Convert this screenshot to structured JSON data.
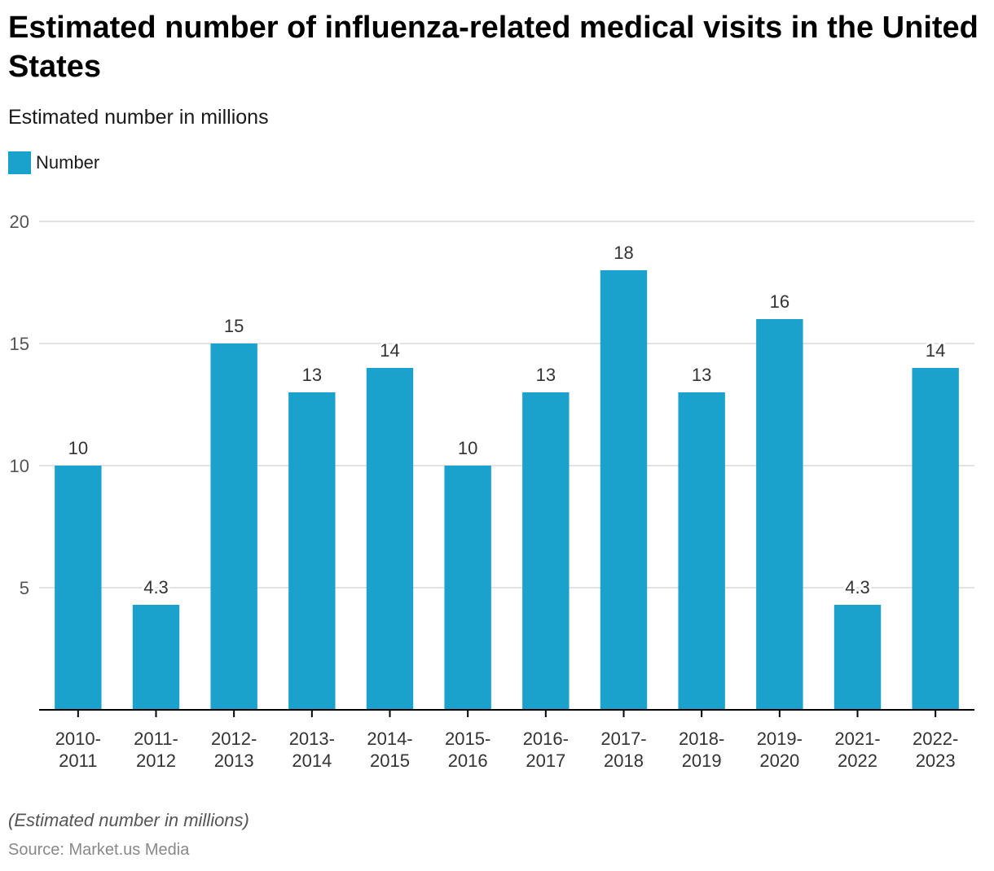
{
  "header": {
    "title": "Estimated number of influenza-related medical visits in the United States",
    "subtitle": "Estimated number in millions"
  },
  "legend": {
    "label": "Number",
    "color": "#1aa1cc"
  },
  "footer": {
    "note": "(Estimated number in millions)",
    "source": "Source: Market.us Media"
  },
  "chart_data": {
    "type": "bar",
    "title": "Estimated number of influenza-related medical visits in the United States",
    "subtitle": "Estimated number in millions",
    "xlabel": "",
    "ylabel": "",
    "ylim": [
      0,
      20
    ],
    "yticks": [
      5,
      10,
      15,
      20
    ],
    "grid": true,
    "legend_position": "top-left",
    "categories": [
      [
        "2010-",
        "2011"
      ],
      [
        "2011-",
        "2012"
      ],
      [
        "2012-",
        "2013"
      ],
      [
        "2013-",
        "2014"
      ],
      [
        "2014-",
        "2015"
      ],
      [
        "2015-",
        "2016"
      ],
      [
        "2016-",
        "2017"
      ],
      [
        "2017-",
        "2018"
      ],
      [
        "2018-",
        "2019"
      ],
      [
        "2019-",
        "2020"
      ],
      [
        "2021-",
        "2022"
      ],
      [
        "2022-",
        "2023"
      ]
    ],
    "series": [
      {
        "name": "Number",
        "color": "#1aa1cc",
        "values": [
          10,
          4.3,
          15,
          13,
          14,
          10,
          13,
          18,
          13,
          16,
          4.3,
          14
        ],
        "labels": [
          "10",
          "4.3",
          "15",
          "13",
          "14",
          "10",
          "13",
          "18",
          "13",
          "16",
          "4.3",
          "14"
        ]
      }
    ]
  }
}
